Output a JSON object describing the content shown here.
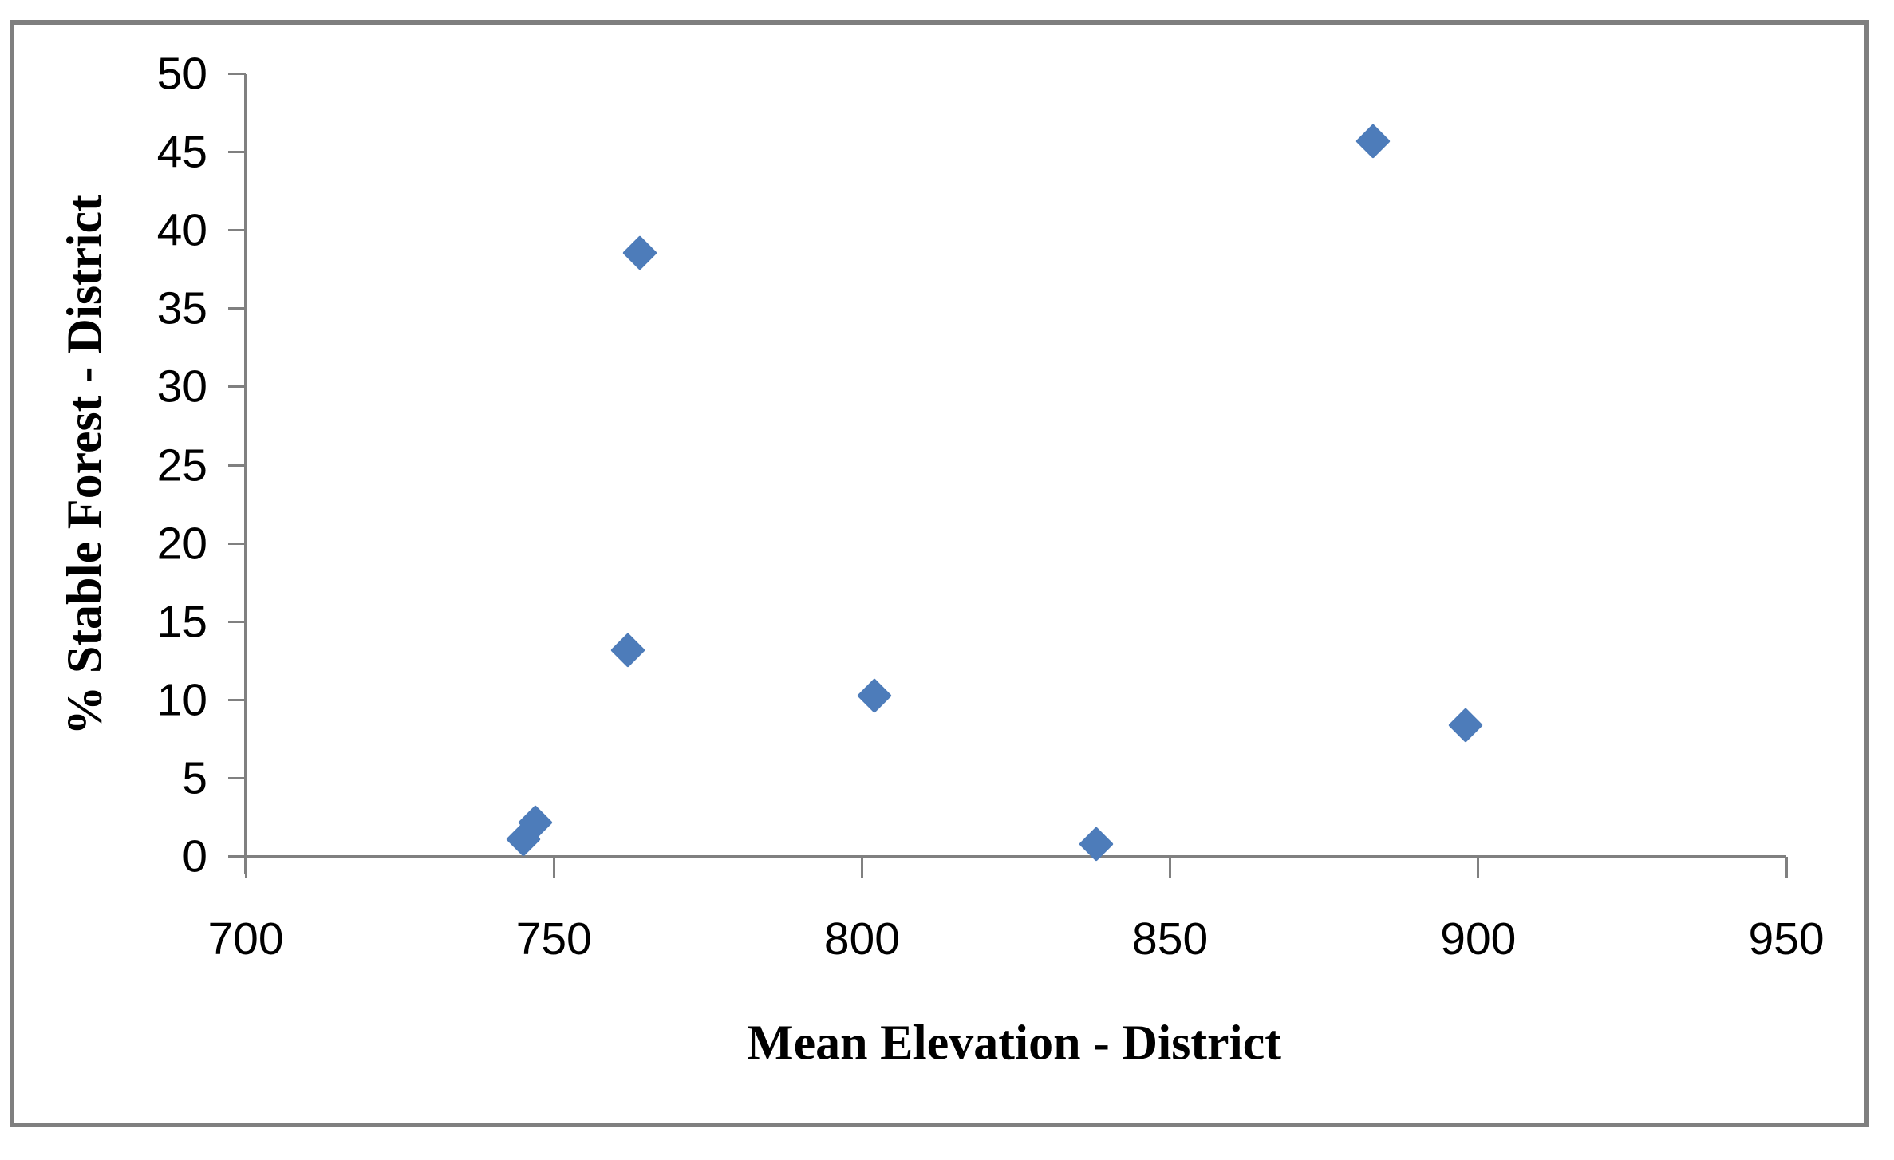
{
  "chart_data": {
    "type": "scatter",
    "title": "",
    "xlabel": "Mean Elevation - District",
    "ylabel": "% Stable Forest -  District",
    "xlim": [
      700,
      950
    ],
    "ylim": [
      0,
      50
    ],
    "x_ticks": [
      700,
      750,
      800,
      850,
      900,
      950
    ],
    "y_ticks": [
      0,
      5,
      10,
      15,
      20,
      25,
      30,
      35,
      40,
      45,
      50
    ],
    "grid": false,
    "legend_position": "none",
    "marker": "diamond",
    "marker_color": "#4d7cba",
    "axis_color": "#808080",
    "frame_color": "#7f7f7f",
    "points": [
      {
        "x": 745,
        "y": 1.1
      },
      {
        "x": 747,
        "y": 2.2
      },
      {
        "x": 762,
        "y": 13.2
      },
      {
        "x": 764,
        "y": 38.6
      },
      {
        "x": 802,
        "y": 10.3
      },
      {
        "x": 838,
        "y": 0.8
      },
      {
        "x": 883,
        "y": 45.7
      },
      {
        "x": 898,
        "y": 8.4
      }
    ]
  }
}
